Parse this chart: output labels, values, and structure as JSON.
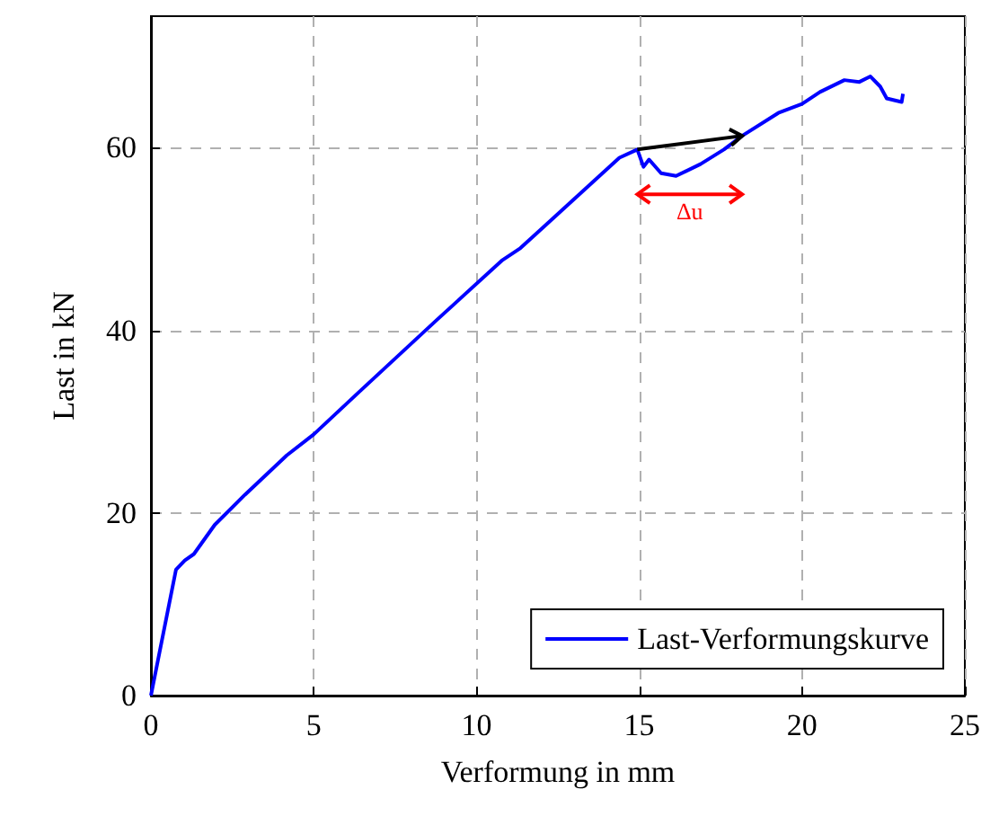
{
  "chart_data": {
    "type": "line",
    "xlabel": "Verformung in mm",
    "ylabel": "Last in kN",
    "series": [
      {
        "name": "Last-Verformungskurve",
        "color": "#0000ff",
        "x": [
          0,
          0.77,
          1.04,
          1.32,
          1.96,
          2.89,
          4.17,
          5.0,
          6.38,
          8.77,
          10.8,
          11.35,
          14.39,
          14.94,
          15.13,
          15.3,
          15.67,
          16.13,
          16.88,
          17.6,
          18.16,
          19.27,
          20.0,
          20.55,
          21.3,
          21.76,
          22.1,
          22.4,
          22.6,
          23.06,
          23.1
        ],
        "values": [
          0,
          13.8,
          14.8,
          15.5,
          18.7,
          22.0,
          26.3,
          28.6,
          33.2,
          41.1,
          47.7,
          49.0,
          58.9,
          59.8,
          57.9,
          58.7,
          57.2,
          56.9,
          58.2,
          59.8,
          61.3,
          63.8,
          64.8,
          66.1,
          67.4,
          67.2,
          67.8,
          66.7,
          65.4,
          65.0,
          65.9
        ]
      }
    ],
    "xlim": [
      0,
      25
    ],
    "xticks": [
      0,
      5,
      10,
      15,
      20,
      25
    ],
    "ylim": [
      0,
      74.4
    ],
    "yticks": [
      0,
      20,
      40,
      60
    ],
    "grid": true,
    "legend": "bottom right",
    "marker": "none",
    "line_style": "solid",
    "annotations": [
      "Δu"
    ]
  }
}
